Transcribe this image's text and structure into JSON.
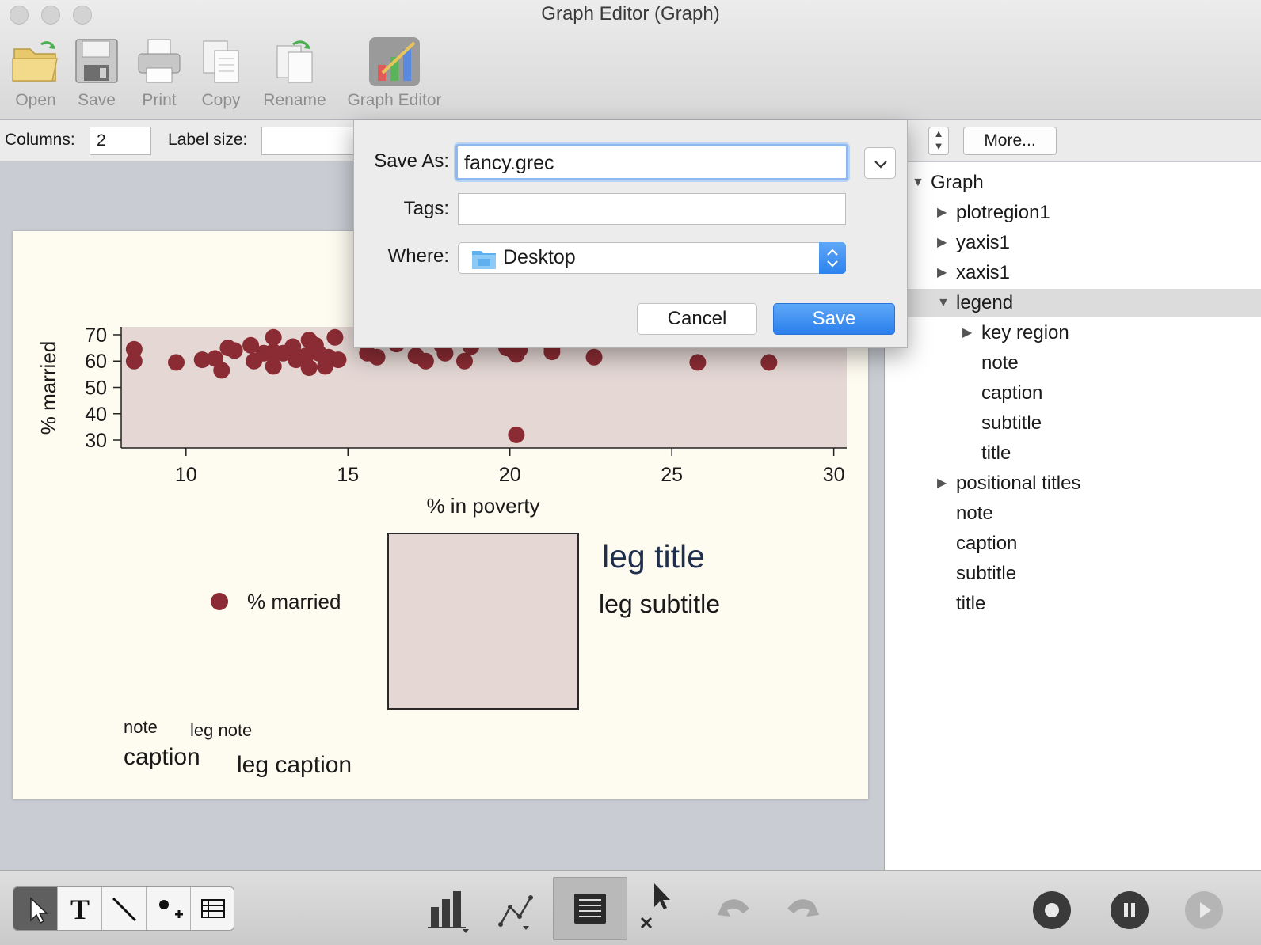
{
  "window": {
    "title": "Graph Editor (Graph)"
  },
  "toolbar": {
    "items": [
      {
        "label": "Open",
        "icon": "folder-icon"
      },
      {
        "label": "Save",
        "icon": "floppy-icon"
      },
      {
        "label": "Print",
        "icon": "printer-icon"
      },
      {
        "label": "Copy",
        "icon": "copy-icon"
      },
      {
        "label": "Rename",
        "icon": "rename-icon"
      },
      {
        "label": "Graph Editor",
        "icon": "graph-editor-icon"
      }
    ]
  },
  "options": {
    "columns_label": "Columns:",
    "columns_value": "2",
    "label_size_label": "Label size:",
    "label_size_value": "",
    "more_label": "More..."
  },
  "dialog": {
    "save_as_label": "Save As:",
    "save_as_value": "fancy.grec",
    "tags_label": "Tags:",
    "tags_value": "",
    "where_label": "Where:",
    "where_value": "Desktop",
    "cancel_label": "Cancel",
    "save_label": "Save"
  },
  "tree": {
    "items": [
      {
        "label": "Graph",
        "expanded": true
      },
      {
        "label": "plotregion1",
        "expanded": false
      },
      {
        "label": "yaxis1",
        "expanded": false
      },
      {
        "label": "xaxis1",
        "expanded": false
      },
      {
        "label": "legend",
        "expanded": true,
        "selected": true
      },
      {
        "label": "key region",
        "expanded": false
      },
      {
        "label": "note"
      },
      {
        "label": "caption"
      },
      {
        "label": "subtitle"
      },
      {
        "label": "title"
      },
      {
        "label": "positional titles",
        "expanded": false
      },
      {
        "label": "note"
      },
      {
        "label": "caption"
      },
      {
        "label": "subtitle"
      },
      {
        "label": "title"
      }
    ]
  },
  "graph": {
    "legend_key_label": "% married",
    "leg_title": "leg title",
    "leg_subtitle": "leg subtitle",
    "note": "note",
    "leg_note": "leg note",
    "caption": "caption",
    "leg_caption": "leg caption"
  },
  "chart_data": {
    "type": "scatter",
    "xlabel": "% in poverty",
    "ylabel": "% married",
    "xlim": [
      8,
      30.4
    ],
    "ylim": [
      27,
      73
    ],
    "x_ticks": [
      10,
      15,
      20,
      25,
      30
    ],
    "y_ticks": [
      30,
      40,
      50,
      60,
      70
    ],
    "series": [
      {
        "name": "% married",
        "color": "#8b2c34",
        "points": [
          [
            8.4,
            64.5
          ],
          [
            8.4,
            60
          ],
          [
            9.7,
            59.5
          ],
          [
            10.5,
            60.5
          ],
          [
            10.9,
            61
          ],
          [
            11.1,
            56.5
          ],
          [
            11.3,
            65
          ],
          [
            11.5,
            64
          ],
          [
            12,
            66
          ],
          [
            12.1,
            60
          ],
          [
            12.4,
            63
          ],
          [
            12.7,
            69
          ],
          [
            12.7,
            63.5
          ],
          [
            12.7,
            58
          ],
          [
            13,
            63
          ],
          [
            13.3,
            65.5
          ],
          [
            13.4,
            60.5
          ],
          [
            13.7,
            62
          ],
          [
            13.8,
            68
          ],
          [
            13.8,
            57.5
          ],
          [
            14,
            66
          ],
          [
            14.1,
            63
          ],
          [
            14.3,
            58
          ],
          [
            14.4,
            61.5
          ],
          [
            14.7,
            60.5
          ],
          [
            14.6,
            69
          ],
          [
            15.6,
            63
          ],
          [
            15.9,
            61.5
          ],
          [
            16.5,
            66.5
          ],
          [
            17.1,
            62
          ],
          [
            17.4,
            60
          ],
          [
            17.9,
            66
          ],
          [
            18,
            63
          ],
          [
            18.6,
            60
          ],
          [
            18.8,
            65.5
          ],
          [
            19.9,
            65
          ],
          [
            20.1,
            64
          ],
          [
            20.2,
            62.5
          ],
          [
            20.3,
            64.5
          ],
          [
            20.2,
            32
          ],
          [
            21.3,
            65
          ],
          [
            21.3,
            63.5
          ],
          [
            22.6,
            61.5
          ],
          [
            25.8,
            59.5
          ],
          [
            28,
            59.5
          ]
        ]
      }
    ]
  },
  "bottom_tools": {
    "left": [
      "pointer-icon",
      "text-tool-icon",
      "line-tool-icon",
      "marker-tool-icon",
      "grid-tool-icon"
    ],
    "middle": [
      "bar-chart-icon",
      "plot-line-icon",
      "list-icon",
      "add-object-icon",
      "undo-icon",
      "redo-icon"
    ],
    "right": [
      "record-icon",
      "pause-icon",
      "play-icon"
    ]
  }
}
